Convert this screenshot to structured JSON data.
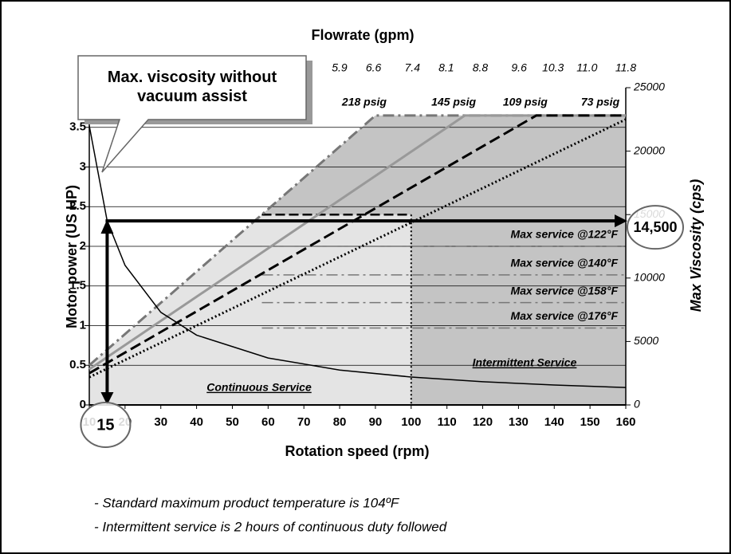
{
  "chart_data": {
    "type": "line",
    "title": "Flowrate (gpm)",
    "x_label": "Rotation speed (rpm)",
    "y_label": "Motor power (US HP)",
    "y2_label": "Max Viscosity (cps)",
    "xlim": [
      10,
      160
    ],
    "xticks": [
      10,
      20,
      30,
      40,
      50,
      60,
      70,
      80,
      90,
      100,
      110,
      120,
      130,
      140,
      150,
      160
    ],
    "x2lim": [
      0.74,
      11.8
    ],
    "x2ticks": [
      5.9,
      6.6,
      7.4,
      8.1,
      8.8,
      9.6,
      10.3,
      {
        "value": 11,
        "label": "11.0"
      },
      11.8
    ],
    "ylim": [
      0,
      4
    ],
    "yticks": [
      0,
      0.5,
      1,
      1.5,
      2,
      2.5,
      3,
      3.5
    ],
    "y2lim": [
      0,
      25000
    ],
    "y2ticks": [
      0,
      5000,
      10000,
      15000,
      20000,
      25000
    ],
    "grid": true,
    "series": [
      {
        "name": "218 psig",
        "color": "#777777",
        "style": "dashdot",
        "x": [
          10,
          90,
          160
        ],
        "values": [
          0.5,
          3.65,
          3.65
        ]
      },
      {
        "name": "145 psig",
        "color": "#999999",
        "style": "solid",
        "x": [
          10,
          115,
          160
        ],
        "values": [
          0.45,
          3.65,
          3.65
        ]
      },
      {
        "name": "109 psig",
        "color": "#000000",
        "style": "dashed",
        "x": [
          10,
          135,
          160
        ],
        "values": [
          0.4,
          3.65,
          3.65
        ]
      },
      {
        "name": "73 psig",
        "color": "#000000",
        "style": "dotted",
        "x": [
          10,
          160
        ],
        "values": [
          0.35,
          3.6
        ]
      },
      {
        "name": "Max. viscosity without vacuum assist",
        "color": "#000000",
        "style": "solid",
        "axis": "y2",
        "x": [
          10,
          15,
          20,
          30,
          40,
          60,
          80,
          100,
          120,
          140,
          160
        ],
        "values": [
          22000,
          14500,
          11000,
          7300,
          5500,
          3700,
          2750,
          2200,
          1830,
          1570,
          1375
        ]
      }
    ],
    "service_limits": [
      {
        "label": "Max service @122°F",
        "value": 2.0
      },
      {
        "label": "Max service @140°F",
        "value": 1.64
      },
      {
        "label": "Max service @158°F",
        "value": 1.29
      },
      {
        "label": "Max service @176°F",
        "value": 0.97
      }
    ],
    "service_boundary": {
      "rpm": 100,
      "hp": 2.4
    },
    "regions": {
      "continuous": "Continuous Service",
      "intermittent": "Intermittent Service"
    },
    "example": {
      "rpm": 15,
      "viscosity": {
        "value": 14500,
        "label": "14,500"
      }
    },
    "notes": [
      "- Standard maximum product temperature is 104ºF",
      "- Intermittent service is 2 hours of continuous duty followed"
    ]
  }
}
